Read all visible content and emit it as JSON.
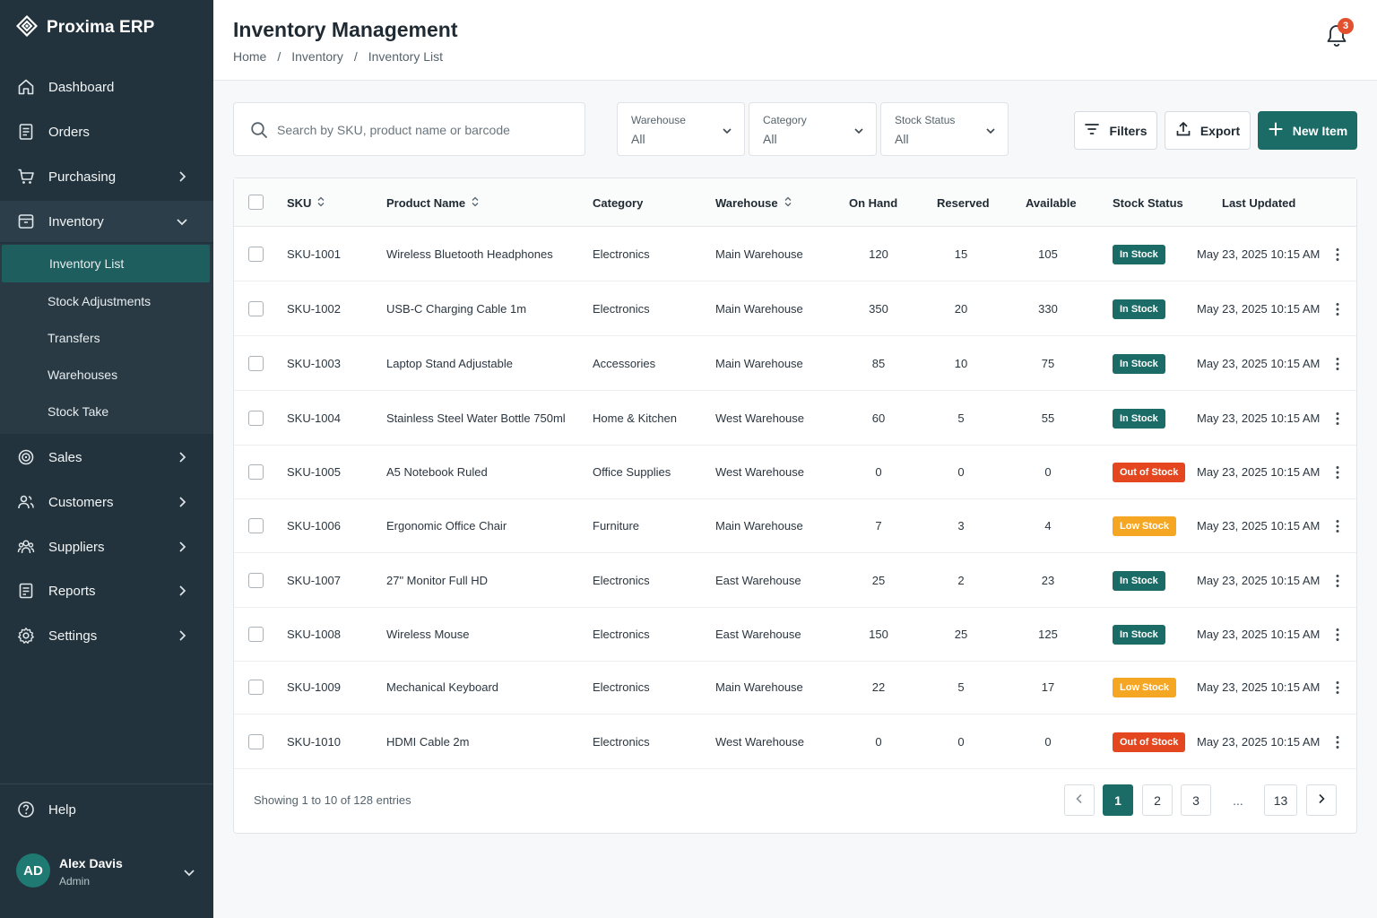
{
  "app": {
    "name": "Proxima ERP"
  },
  "sidebar": {
    "items": [
      {
        "label": "Dashboard",
        "icon": "home-icon"
      },
      {
        "label": "Orders",
        "icon": "document-icon"
      },
      {
        "label": "Purchasing",
        "icon": "cart-icon"
      },
      {
        "label": "Inventory",
        "icon": "box-icon",
        "expanded": true
      },
      {
        "label": "Sales",
        "icon": "target-icon"
      },
      {
        "label": "Customers",
        "icon": "users-icon"
      },
      {
        "label": "Suppliers",
        "icon": "team-icon"
      },
      {
        "label": "Reports",
        "icon": "report-icon"
      },
      {
        "label": "Settings",
        "icon": "gear-icon"
      }
    ],
    "sub_items": [
      "Inventory List",
      "Stock Adjustments",
      "Transfers",
      "Warehouses",
      "Stock Take"
    ],
    "active_sub_item": "Inventory List",
    "help_label": "Help",
    "user": {
      "initials": "AD",
      "name": "Alex Davis",
      "role": "Admin"
    }
  },
  "header": {
    "title": "Inventory Management",
    "breadcrumb": [
      "Home",
      "/",
      "Inventory",
      "/",
      "Inventory List"
    ],
    "notification_count": "3"
  },
  "toolbar": {
    "search_placeholder": "Search by SKU, product name or barcode",
    "filters": [
      {
        "label": "Warehouse",
        "value": "All"
      },
      {
        "label": "Category",
        "value": "All"
      },
      {
        "label": "Stock Status",
        "value": "All"
      }
    ],
    "filters_button": "Filters",
    "export_button": "Export",
    "new_item_button": "New Item"
  },
  "table": {
    "columns": [
      "SKU",
      "Product Name",
      "Category",
      "Warehouse",
      "On Hand",
      "Reserved",
      "Available",
      "Stock Status",
      "Last Updated"
    ],
    "rows": [
      {
        "sku": "SKU-1001",
        "name": "Wireless Bluetooth Headphones",
        "category": "Electronics",
        "warehouse": "Main Warehouse",
        "on_hand": "120",
        "reserved": "15",
        "available": "105",
        "status": "In Stock",
        "updated": "May 23, 2025 10:15 AM"
      },
      {
        "sku": "SKU-1002",
        "name": "USB-C Charging Cable 1m",
        "category": "Electronics",
        "warehouse": "Main Warehouse",
        "on_hand": "350",
        "reserved": "20",
        "available": "330",
        "status": "In Stock",
        "updated": "May 23, 2025 10:15 AM"
      },
      {
        "sku": "SKU-1003",
        "name": "Laptop Stand Adjustable",
        "category": "Accessories",
        "warehouse": "Main Warehouse",
        "on_hand": "85",
        "reserved": "10",
        "available": "75",
        "status": "In Stock",
        "updated": "May 23, 2025 10:15 AM"
      },
      {
        "sku": "SKU-1004",
        "name": "Stainless Steel Water Bottle 750ml",
        "category": "Home & Kitchen",
        "warehouse": "West Warehouse",
        "on_hand": "60",
        "reserved": "5",
        "available": "55",
        "status": "In Stock",
        "updated": "May 23, 2025 10:15 AM"
      },
      {
        "sku": "SKU-1005",
        "name": "A5 Notebook Ruled",
        "category": "Office Supplies",
        "warehouse": "West Warehouse",
        "on_hand": "0",
        "reserved": "0",
        "available": "0",
        "status": "Out of Stock",
        "updated": "May 23, 2025 10:15 AM"
      },
      {
        "sku": "SKU-1006",
        "name": "Ergonomic Office Chair",
        "category": "Furniture",
        "warehouse": "Main Warehouse",
        "on_hand": "7",
        "reserved": "3",
        "available": "4",
        "status": "Low Stock",
        "updated": "May 23, 2025 10:15 AM"
      },
      {
        "sku": "SKU-1007",
        "name": "27\" Monitor Full HD",
        "category": "Electronics",
        "warehouse": "East Warehouse",
        "on_hand": "25",
        "reserved": "2",
        "available": "23",
        "status": "In Stock",
        "updated": "May 23, 2025 10:15 AM"
      },
      {
        "sku": "SKU-1008",
        "name": "Wireless Mouse",
        "category": "Electronics",
        "warehouse": "East Warehouse",
        "on_hand": "150",
        "reserved": "25",
        "available": "125",
        "status": "In Stock",
        "updated": "May 23, 2025 10:15 AM"
      },
      {
        "sku": "SKU-1009",
        "name": "Mechanical Keyboard",
        "category": "Electronics",
        "warehouse": "Main Warehouse",
        "on_hand": "22",
        "reserved": "5",
        "available": "17",
        "status": "Low Stock",
        "updated": "May 23, 2025 10:15 AM"
      },
      {
        "sku": "SKU-1010",
        "name": "HDMI Cable 2m",
        "category": "Electronics",
        "warehouse": "West Warehouse",
        "on_hand": "0",
        "reserved": "0",
        "available": "0",
        "status": "Out of Stock",
        "updated": "May 23, 2025 10:15 AM"
      }
    ],
    "status_colors": {
      "In Stock": "#1b6b67",
      "Out of Stock": "#e4471f",
      "Low Stock": "#f5a623"
    }
  },
  "pagination": {
    "summary": "Showing 1 to 10 of 128 entries",
    "pages": [
      "1",
      "2",
      "3"
    ],
    "ellipsis": "...",
    "last_page": "13",
    "current": "1"
  },
  "colors": {
    "sidebar_bg": "#23333d",
    "accent": "#1b6b67",
    "badge_red": "#e2502e"
  }
}
